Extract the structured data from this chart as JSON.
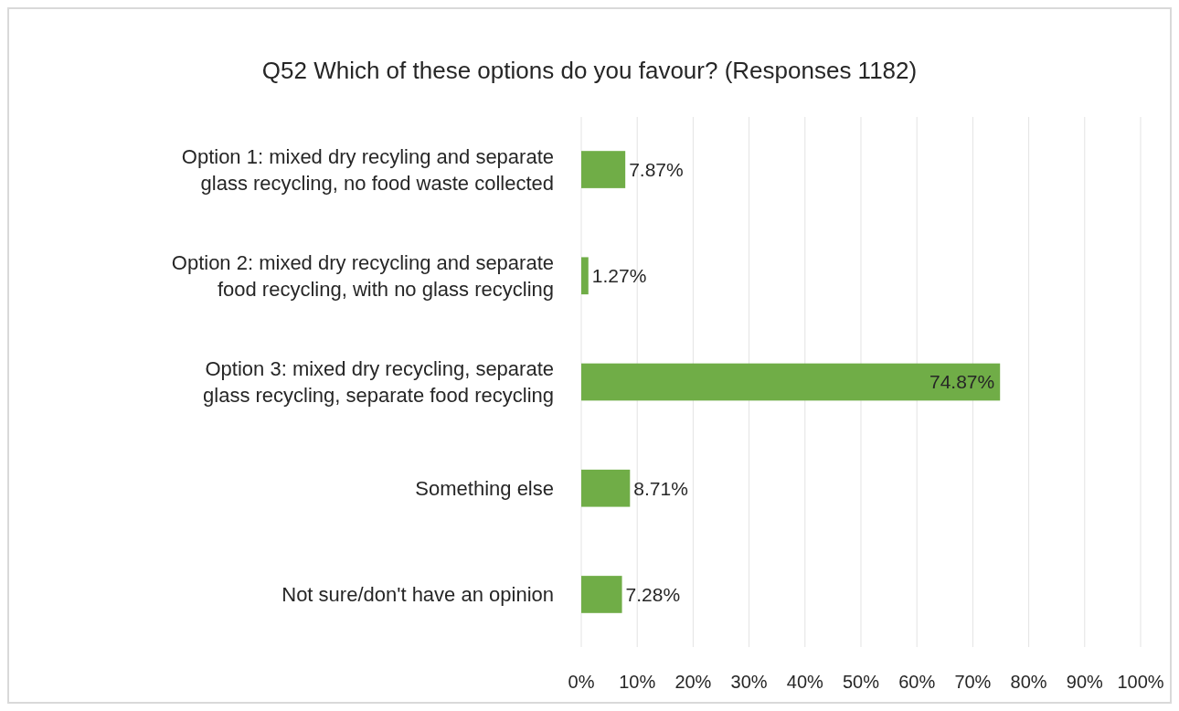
{
  "chart_data": {
    "type": "bar",
    "orientation": "horizontal",
    "title": "Q52 Which of these options do you favour? (Responses 1182)",
    "categories": [
      "Option 1: mixed dry recyling and separate glass recycling, no food waste collected",
      "Option 2: mixed dry recycling and separate food recycling, with no glass recycling",
      "Option 3: mixed dry recycling, separate glass recycling, separate food recycling",
      "Something else",
      "Not sure/don't have an opinion"
    ],
    "values": [
      7.87,
      1.27,
      74.87,
      8.71,
      7.28
    ],
    "value_labels": [
      "7.87%",
      "1.27%",
      "74.87%",
      "8.71%",
      "7.28%"
    ],
    "color": "#70ad47",
    "xlim": [
      0,
      100
    ],
    "xticks": [
      {
        "value": 0,
        "label": "0%"
      },
      {
        "value": 10,
        "label": "10%"
      },
      {
        "value": 20,
        "label": "20%"
      },
      {
        "value": 30,
        "label": "30%"
      },
      {
        "value": 40,
        "label": "40%"
      },
      {
        "value": 50,
        "label": "50%"
      },
      {
        "value": 60,
        "label": "60%"
      },
      {
        "value": 70,
        "label": "70%"
      },
      {
        "value": 80,
        "label": "80%"
      },
      {
        "value": 90,
        "label": "90%"
      },
      {
        "value": 100,
        "label": "100%"
      }
    ],
    "grid": "x"
  }
}
